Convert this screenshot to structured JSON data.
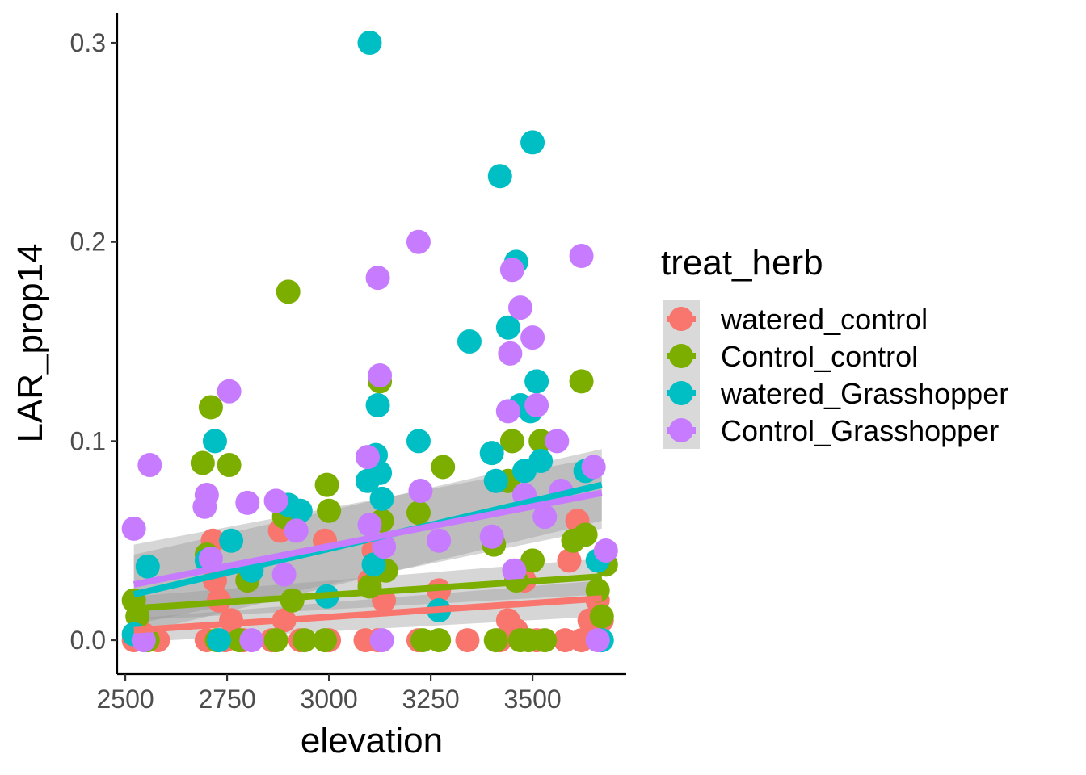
{
  "chart_data": {
    "type": "scatter",
    "xlabel": "elevation",
    "ylabel": "LAR_prop14",
    "xlim": [
      2480,
      3730
    ],
    "ylim": [
      -0.017,
      0.315
    ],
    "x_ticks": [
      2500,
      2750,
      3000,
      3250,
      3500
    ],
    "x_tick_labels": [
      "2500",
      "2750",
      "3000",
      "3250",
      "3500"
    ],
    "y_ticks": [
      0.0,
      0.1,
      0.2,
      0.3
    ],
    "y_tick_labels": [
      "0.0",
      "0.1",
      "0.2",
      "0.3"
    ],
    "grid": false,
    "legend": {
      "title": "treat_herb",
      "placement": "right",
      "entries": [
        "watered_control",
        "Control_control",
        "watered_Grasshopper",
        "Control_Grasshopper"
      ]
    },
    "series": [
      {
        "name": "watered_control",
        "color": "#F8766D",
        "trend": {
          "x0": 2521,
          "y0": 0.005,
          "x1": 3670,
          "y1": 0.021,
          "se0": 0.006,
          "se1": 0.009
        },
        "points": [
          [
            2521,
            0.0
          ],
          [
            2545,
            0.003
          ],
          [
            2580,
            0.0
          ],
          [
            2700,
            0.0
          ],
          [
            2715,
            0.05
          ],
          [
            2720,
            0.03
          ],
          [
            2730,
            0.02
          ],
          [
            2745,
            0.0
          ],
          [
            2760,
            0.01
          ],
          [
            2790,
            0.0
          ],
          [
            2800,
            0.03
          ],
          [
            2860,
            0.0
          ],
          [
            2880,
            0.055
          ],
          [
            2890,
            0.01
          ],
          [
            2930,
            0.0
          ],
          [
            2990,
            0.05
          ],
          [
            3000,
            0.0
          ],
          [
            3090,
            0.0
          ],
          [
            3100,
            0.03
          ],
          [
            3110,
            0.045
          ],
          [
            3120,
            0.0
          ],
          [
            3135,
            0.02
          ],
          [
            3220,
            0.0
          ],
          [
            3270,
            0.025
          ],
          [
            3340,
            0.0
          ],
          [
            3420,
            0.0
          ],
          [
            3440,
            0.01
          ],
          [
            3460,
            0.005
          ],
          [
            3480,
            0.03
          ],
          [
            3510,
            0.0
          ],
          [
            3580,
            0.0
          ],
          [
            3590,
            0.04
          ],
          [
            3610,
            0.06
          ],
          [
            3620,
            0.0
          ],
          [
            3640,
            0.01
          ],
          [
            3660,
            0.02
          ],
          [
            3670,
            0.01
          ]
        ]
      },
      {
        "name": "Control_control",
        "color": "#7CAE00",
        "trend": {
          "x0": 2521,
          "y0": 0.016,
          "x1": 3670,
          "y1": 0.032,
          "se0": 0.006,
          "se1": 0.009
        },
        "points": [
          [
            2521,
            0.02
          ],
          [
            2530,
            0.012
          ],
          [
            2555,
            0.0
          ],
          [
            2690,
            0.089
          ],
          [
            2700,
            0.043
          ],
          [
            2710,
            0.117
          ],
          [
            2725,
            0.0
          ],
          [
            2755,
            0.088
          ],
          [
            2780,
            0.0
          ],
          [
            2800,
            0.03
          ],
          [
            2870,
            0.0
          ],
          [
            2890,
            0.062
          ],
          [
            2900,
            0.175
          ],
          [
            2910,
            0.02
          ],
          [
            2940,
            0.0
          ],
          [
            2990,
            0.0
          ],
          [
            2995,
            0.078
          ],
          [
            3000,
            0.065
          ],
          [
            3100,
            0.027
          ],
          [
            3125,
            0.13
          ],
          [
            3130,
            0.06
          ],
          [
            3140,
            0.035
          ],
          [
            3220,
            0.064
          ],
          [
            3230,
            0.0
          ],
          [
            3270,
            0.0
          ],
          [
            3280,
            0.087
          ],
          [
            3405,
            0.048
          ],
          [
            3410,
            0.0
          ],
          [
            3440,
            0.08
          ],
          [
            3450,
            0.1
          ],
          [
            3460,
            0.03
          ],
          [
            3470,
            0.0
          ],
          [
            3490,
            0.0
          ],
          [
            3500,
            0.04
          ],
          [
            3520,
            0.1
          ],
          [
            3530,
            0.0
          ],
          [
            3600,
            0.05
          ],
          [
            3620,
            0.13
          ],
          [
            3630,
            0.053
          ],
          [
            3660,
            0.025
          ],
          [
            3670,
            0.012
          ],
          [
            3680,
            0.038
          ]
        ]
      },
      {
        "name": "watered_Grasshopper",
        "color": "#00BFC4",
        "trend": {
          "x0": 2521,
          "y0": 0.023,
          "x1": 3670,
          "y1": 0.078,
          "se0": 0.02,
          "se1": 0.018
        },
        "points": [
          [
            2521,
            0.003
          ],
          [
            2555,
            0.037
          ],
          [
            2700,
            0.04
          ],
          [
            2720,
            0.1
          ],
          [
            2730,
            0.0
          ],
          [
            2760,
            0.05
          ],
          [
            2810,
            0.035
          ],
          [
            2900,
            0.068
          ],
          [
            2930,
            0.065
          ],
          [
            2995,
            0.022
          ],
          [
            3095,
            0.08
          ],
          [
            3100,
            0.3
          ],
          [
            3110,
            0.038
          ],
          [
            3115,
            0.093
          ],
          [
            3120,
            0.118
          ],
          [
            3125,
            0.084
          ],
          [
            3130,
            0.071
          ],
          [
            3220,
            0.1
          ],
          [
            3270,
            0.015
          ],
          [
            3345,
            0.15
          ],
          [
            3400,
            0.094
          ],
          [
            3410,
            0.08
          ],
          [
            3420,
            0.233
          ],
          [
            3440,
            0.157
          ],
          [
            3460,
            0.19
          ],
          [
            3470,
            0.118
          ],
          [
            3480,
            0.085
          ],
          [
            3495,
            0.115
          ],
          [
            3500,
            0.25
          ],
          [
            3510,
            0.13
          ],
          [
            3520,
            0.09
          ],
          [
            3630,
            0.085
          ],
          [
            3660,
            0.04
          ],
          [
            3670,
            0.0
          ]
        ]
      },
      {
        "name": "Control_Grasshopper",
        "color": "#C77CFF",
        "trend": {
          "x0": 2521,
          "y0": 0.028,
          "x1": 3670,
          "y1": 0.074,
          "se0": 0.02,
          "se1": 0.018
        },
        "points": [
          [
            2521,
            0.056
          ],
          [
            2545,
            0.0
          ],
          [
            2560,
            0.088
          ],
          [
            2695,
            0.067
          ],
          [
            2700,
            0.073
          ],
          [
            2710,
            0.041
          ],
          [
            2755,
            0.125
          ],
          [
            2800,
            0.069
          ],
          [
            2810,
            0.0
          ],
          [
            2870,
            0.07
          ],
          [
            2890,
            0.033
          ],
          [
            2920,
            0.055
          ],
          [
            3095,
            0.092
          ],
          [
            3100,
            0.058
          ],
          [
            3120,
            0.182
          ],
          [
            3125,
            0.133
          ],
          [
            3130,
            0.0
          ],
          [
            3135,
            0.047
          ],
          [
            3220,
            0.2
          ],
          [
            3225,
            0.075
          ],
          [
            3270,
            0.05
          ],
          [
            3400,
            0.052
          ],
          [
            3440,
            0.115
          ],
          [
            3445,
            0.144
          ],
          [
            3450,
            0.186
          ],
          [
            3455,
            0.035
          ],
          [
            3470,
            0.167
          ],
          [
            3480,
            0.073
          ],
          [
            3500,
            0.152
          ],
          [
            3510,
            0.118
          ],
          [
            3530,
            0.062
          ],
          [
            3560,
            0.1
          ],
          [
            3570,
            0.075
          ],
          [
            3620,
            0.193
          ],
          [
            3650,
            0.087
          ],
          [
            3660,
            0.0
          ],
          [
            3680,
            0.045
          ]
        ]
      }
    ]
  }
}
